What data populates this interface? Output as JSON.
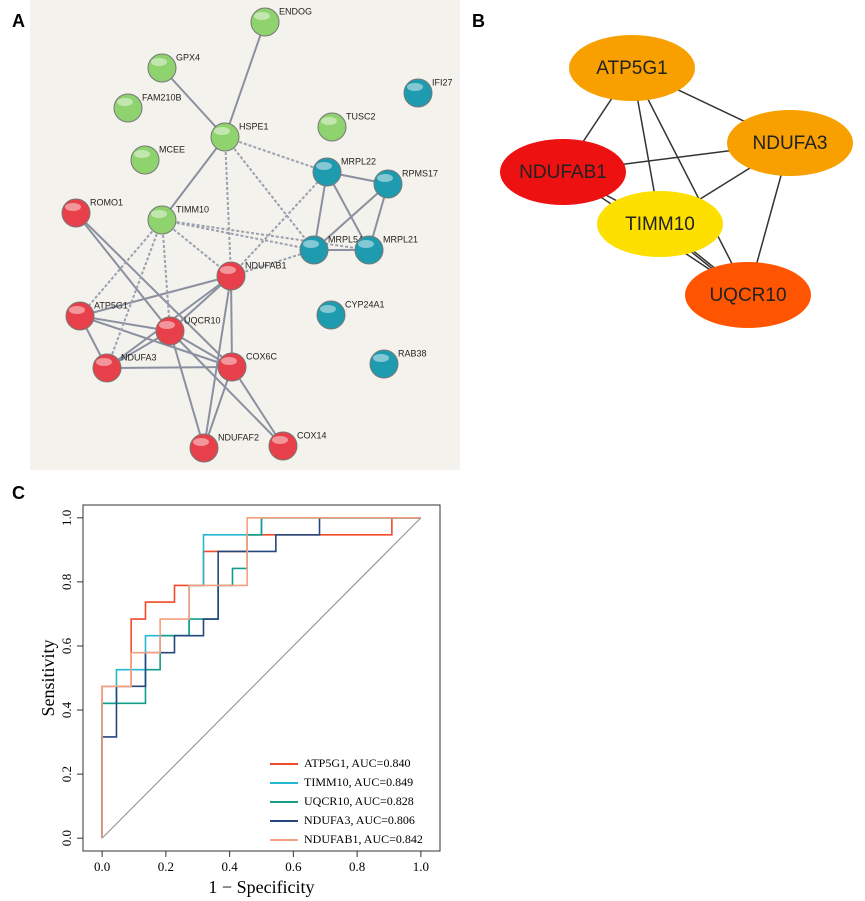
{
  "panel_labels": [
    "A",
    "B",
    "C"
  ],
  "network_a": {
    "nodes": [
      {
        "label": "ENDOG",
        "color": "#8fd36e"
      },
      {
        "label": "GPX4",
        "color": "#8fd36e"
      },
      {
        "label": "FAM210B",
        "color": "#8fd36e"
      },
      {
        "label": "IFI27",
        "color": "#1f9bb0"
      },
      {
        "label": "TUSC2",
        "color": "#8fd36e"
      },
      {
        "label": "HSPE1",
        "color": "#8fd36e"
      },
      {
        "label": "MCEE",
        "color": "#8fd36e"
      },
      {
        "label": "MRPL22",
        "color": "#1f9bb0"
      },
      {
        "label": "RPMS17",
        "color": "#1f9bb0"
      },
      {
        "label": "ROMO1",
        "color": "#e8404a"
      },
      {
        "label": "TIMM10",
        "color": "#8fd36e"
      },
      {
        "label": "MRPL54",
        "color": "#1f9bb0"
      },
      {
        "label": "MRPL21",
        "color": "#1f9bb0"
      },
      {
        "label": "NDUFAB1",
        "color": "#e8404a"
      },
      {
        "label": "CYP24A1",
        "color": "#1f9bb0"
      },
      {
        "label": "ATP5G1",
        "color": "#e8404a"
      },
      {
        "label": "UQCR10",
        "color": "#e8404a"
      },
      {
        "label": "NDUFA3",
        "color": "#e8404a"
      },
      {
        "label": "COX6C",
        "color": "#e8404a"
      },
      {
        "label": "RAB38",
        "color": "#1f9bb0"
      },
      {
        "label": "NDUFAF2",
        "color": "#e8404a"
      },
      {
        "label": "COX14",
        "color": "#e8404a"
      }
    ]
  },
  "network_b": {
    "nodes": [
      {
        "label": "ATP5G1",
        "color": "#f7a000"
      },
      {
        "label": "NDUFA3",
        "color": "#f7a000"
      },
      {
        "label": "NDUFAB1",
        "color": "#ee1111"
      },
      {
        "label": "TIMM10",
        "color": "#fde000"
      },
      {
        "label": "UQCR10",
        "color": "#ff5500"
      }
    ]
  },
  "chart_data": {
    "type": "line",
    "xlabel": "1 − Specificity",
    "ylabel": "Sensitivity",
    "xlim": [
      -0.06,
      1.06
    ],
    "ylim": [
      -0.04,
      1.04
    ],
    "xticks": [
      {
        "value": 0,
        "label": "0.0"
      },
      0.2,
      0.4,
      0.6,
      0.8,
      {
        "value": 1,
        "label": "1.0"
      }
    ],
    "yticks": [
      {
        "value": 0,
        "label": "0.0"
      },
      0.2,
      0.4,
      0.6,
      0.8,
      {
        "value": 1,
        "label": "1.0"
      }
    ],
    "series": [
      {
        "name": "ATP5G1, AUC=0.840",
        "color": "#f04a2a",
        "x": [
          0,
          0,
          0.091,
          0.091,
          0.136,
          0.136,
          0.227,
          0.227,
          0.318,
          0.318,
          0.455,
          0.455,
          0.909,
          0.909,
          1
        ],
        "values": [
          0,
          0.474,
          0.474,
          0.684,
          0.684,
          0.737,
          0.737,
          0.789,
          0.789,
          0.895,
          0.895,
          0.947,
          0.947,
          1,
          1
        ]
      },
      {
        "name": "TIMM10, AUC=0.849",
        "color": "#22b8d0",
        "x": [
          0,
          0,
          0.045,
          0.045,
          0.136,
          0.136,
          0.273,
          0.273,
          0.318,
          0.318,
          0.5,
          0.5,
          1
        ],
        "values": [
          0,
          0.421,
          0.421,
          0.526,
          0.526,
          0.632,
          0.632,
          0.789,
          0.789,
          0.947,
          0.947,
          1,
          1
        ]
      },
      {
        "name": "UQCR10, AUC=0.828",
        "color": "#129e8a",
        "x": [
          0,
          0,
          0.136,
          0.136,
          0.182,
          0.182,
          0.273,
          0.273,
          0.364,
          0.364,
          0.409,
          0.409,
          0.455,
          0.455,
          0.5,
          0.5,
          1
        ],
        "values": [
          0,
          0.421,
          0.421,
          0.526,
          0.526,
          0.632,
          0.632,
          0.684,
          0.684,
          0.789,
          0.789,
          0.842,
          0.842,
          0.947,
          0.947,
          1,
          1
        ]
      },
      {
        "name": "NDUFA3, AUC=0.806",
        "color": "#24477e",
        "x": [
          0,
          0,
          0.045,
          0.045,
          0.136,
          0.136,
          0.227,
          0.227,
          0.318,
          0.318,
          0.364,
          0.364,
          0.545,
          0.545,
          0.682,
          0.682,
          1
        ],
        "values": [
          0,
          0.316,
          0.316,
          0.474,
          0.474,
          0.579,
          0.579,
          0.632,
          0.632,
          0.684,
          0.684,
          0.895,
          0.895,
          0.947,
          0.947,
          1,
          1
        ]
      },
      {
        "name": "NDUFAB1, AUC=0.842",
        "color": "#f4a07e",
        "x": [
          0,
          0,
          0.091,
          0.091,
          0.182,
          0.182,
          0.273,
          0.273,
          0.455,
          0.455,
          1
        ],
        "values": [
          0,
          0.474,
          0.474,
          0.579,
          0.579,
          0.684,
          0.684,
          0.789,
          0.789,
          1,
          1
        ]
      }
    ]
  }
}
